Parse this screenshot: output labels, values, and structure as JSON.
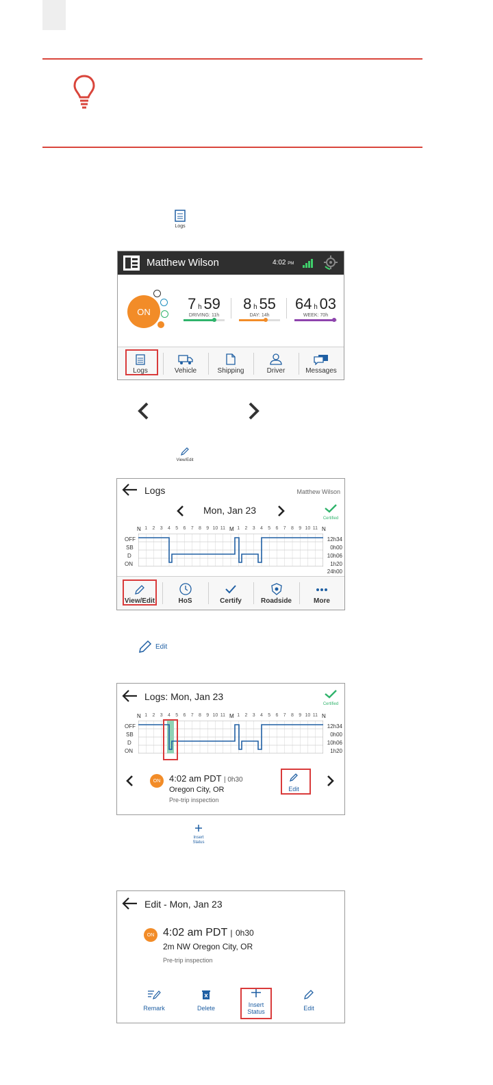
{
  "tip": {
    "icon": "lightbulb-icon"
  },
  "inline_icons": {
    "logs_label": "Logs",
    "view_edit_label": "View/Edit",
    "edit_label": "Edit",
    "insert_status_label": "Insert\nStatus"
  },
  "home": {
    "driver_name": "Matthew Wilson",
    "time": "4:02",
    "time_suffix": "PM",
    "status": "ON",
    "clocks": [
      {
        "h": "7",
        "m": "59",
        "label": "DRIVING: 11h",
        "color": "#2fb36b",
        "progress": 0.72
      },
      {
        "h": "8",
        "m": "55",
        "label": "DAY: 14h",
        "color": "#f28c28",
        "progress": 0.64
      },
      {
        "h": "64",
        "m": "03",
        "label": "WEEK: 70h",
        "color": "#8e44ad",
        "progress": 0.92
      }
    ],
    "nav": [
      "Logs",
      "Vehicle",
      "Shipping",
      "Driver",
      "Messages"
    ]
  },
  "logs": {
    "title": "Logs",
    "driver": "Matthew Wilson",
    "date": "Mon, Jan 23",
    "certified": "Certified",
    "rows": [
      "OFF",
      "SB",
      "D",
      "ON"
    ],
    "totals": [
      "12h34",
      "0h00",
      "10h06",
      "1h20",
      "24h00"
    ],
    "ticks": [
      "N",
      "1",
      "2",
      "3",
      "4",
      "5",
      "6",
      "7",
      "8",
      "9",
      "10",
      "11",
      "M",
      "1",
      "2",
      "3",
      "4",
      "5",
      "6",
      "7",
      "8",
      "9",
      "10",
      "11",
      "N"
    ],
    "nav": [
      "View/Edit",
      "HoS",
      "Certify",
      "Roadside",
      "More"
    ]
  },
  "logs_day": {
    "title": "Logs: Mon, Jan 23",
    "certified": "Certified",
    "event": {
      "status": "ON",
      "time": "4:02 am PDT",
      "duration": "| 0h30",
      "location": "Oregon City, OR",
      "note": "Pre-trip inspection"
    },
    "edit_label": "Edit",
    "totals": [
      "12h34",
      "0h00",
      "10h06",
      "1h20"
    ]
  },
  "edit": {
    "title": "Edit - Mon, Jan 23",
    "event": {
      "status": "ON",
      "time": "4:02 am PDT",
      "sep": "|",
      "duration": "0h30",
      "location": "2m NW Oregon City, OR",
      "note": "Pre-trip inspection"
    },
    "actions": [
      "Remark",
      "Delete",
      "Insert\nStatus",
      "Edit"
    ]
  },
  "colors": {
    "accent_red": "#d93a3a",
    "blue": "#1f5fa3",
    "orange": "#f28c28"
  }
}
